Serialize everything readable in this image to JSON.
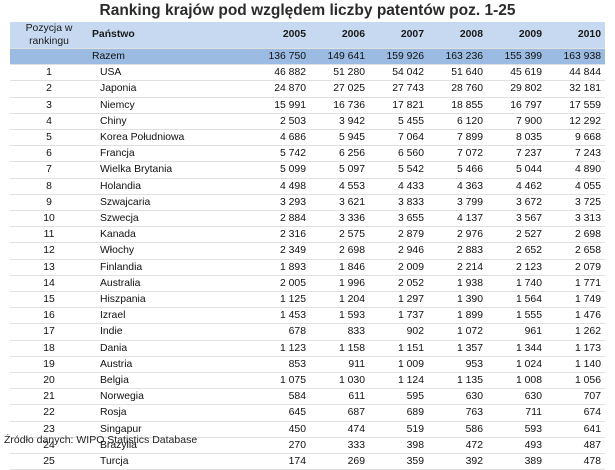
{
  "title": "Ranking krajów pod względem liczby patentów poz. 1-25",
  "header": {
    "position_line1": "Pozycja w",
    "position_line2": "rankingu",
    "country": "Państwo",
    "years": [
      "2005",
      "2006",
      "2007",
      "2008",
      "2009",
      "2010"
    ]
  },
  "total": {
    "position": "",
    "country": "Razem",
    "values": [
      "136 750",
      "149 641",
      "159 926",
      "163 236",
      "155 399",
      "163 938"
    ]
  },
  "rows": [
    {
      "position": "1",
      "country": "USA",
      "values": [
        "46 882",
        "51 280",
        "54 042",
        "51 640",
        "45 619",
        "44 844"
      ]
    },
    {
      "position": "2",
      "country": "Japonia",
      "values": [
        "24 870",
        "27 025",
        "27 743",
        "28 760",
        "29 802",
        "32 181"
      ]
    },
    {
      "position": "3",
      "country": "Niemcy",
      "values": [
        "15 991",
        "16 736",
        "17 821",
        "18 855",
        "16 797",
        "17 559"
      ]
    },
    {
      "position": "4",
      "country": "Chiny",
      "values": [
        "2 503",
        "3 942",
        "5 455",
        "6 120",
        "7 900",
        "12 292"
      ]
    },
    {
      "position": "5",
      "country": "Korea Południowa",
      "values": [
        "4 686",
        "5 945",
        "7 064",
        "7 899",
        "8 035",
        "9 668"
      ]
    },
    {
      "position": "6",
      "country": "Francja",
      "values": [
        "5 742",
        "6 256",
        "6 560",
        "7 072",
        "7 237",
        "7 243"
      ]
    },
    {
      "position": "7",
      "country": "Wielka Brytania",
      "values": [
        "5 099",
        "5 097",
        "5 542",
        "5 466",
        "5 044",
        "4 890"
      ]
    },
    {
      "position": "8",
      "country": "Holandia",
      "values": [
        "4 498",
        "4 553",
        "4 433",
        "4 363",
        "4 462",
        "4 055"
      ]
    },
    {
      "position": "9",
      "country": "Szwajcaria",
      "values": [
        "3 293",
        "3 621",
        "3 833",
        "3 799",
        "3 672",
        "3 725"
      ]
    },
    {
      "position": "10",
      "country": "Szwecja",
      "values": [
        "2 884",
        "3 336",
        "3 655",
        "4 137",
        "3 567",
        "3 313"
      ]
    },
    {
      "position": "11",
      "country": "Kanada",
      "values": [
        "2 316",
        "2 575",
        "2 879",
        "2 976",
        "2 527",
        "2 698"
      ]
    },
    {
      "position": "12",
      "country": "Włochy",
      "values": [
        "2 349",
        "2 698",
        "2 946",
        "2 883",
        "2 652",
        "2 658"
      ]
    },
    {
      "position": "13",
      "country": "Finlandia",
      "values": [
        "1 893",
        "1 846",
        "2 009",
        "2 214",
        "2 123",
        "2 079"
      ]
    },
    {
      "position": "14",
      "country": "Australia",
      "values": [
        "2 005",
        "1 996",
        "2 052",
        "1 938",
        "1 740",
        "1 771"
      ]
    },
    {
      "position": "15",
      "country": "Hiszpania",
      "values": [
        "1 125",
        "1 204",
        "1 297",
        "1 390",
        "1 564",
        "1 749"
      ]
    },
    {
      "position": "16",
      "country": "Izrael",
      "values": [
        "1 453",
        "1 593",
        "1 737",
        "1 899",
        "1 555",
        "1 476"
      ]
    },
    {
      "position": "17",
      "country": "Indie",
      "values": [
        "678",
        "833",
        "902",
        "1 072",
        "961",
        "1 262"
      ]
    },
    {
      "position": "18",
      "country": "Dania",
      "values": [
        "1 123",
        "1 158",
        "1 151",
        "1 357",
        "1 344",
        "1 173"
      ]
    },
    {
      "position": "19",
      "country": "Austria",
      "values": [
        "853",
        "911",
        "1 009",
        "953",
        "1 024",
        "1 140"
      ]
    },
    {
      "position": "20",
      "country": "Belgia",
      "values": [
        "1 075",
        "1 030",
        "1 124",
        "1 135",
        "1 008",
        "1 056"
      ]
    },
    {
      "position": "21",
      "country": "Norwegia",
      "values": [
        "584",
        "611",
        "595",
        "630",
        "630",
        "707"
      ]
    },
    {
      "position": "22",
      "country": "Rosja",
      "values": [
        "645",
        "687",
        "689",
        "763",
        "711",
        "674"
      ]
    },
    {
      "position": "23",
      "country": "Singapur",
      "values": [
        "450",
        "474",
        "519",
        "586",
        "593",
        "641"
      ]
    },
    {
      "position": "24",
      "country": "Brazylia",
      "values": [
        "270",
        "333",
        "398",
        "472",
        "493",
        "487"
      ]
    },
    {
      "position": "25",
      "country": "Turcja",
      "values": [
        "174",
        "269",
        "359",
        "392",
        "389",
        "478"
      ]
    }
  ],
  "source": "Źródło danych: WIPO Statistics Database"
}
